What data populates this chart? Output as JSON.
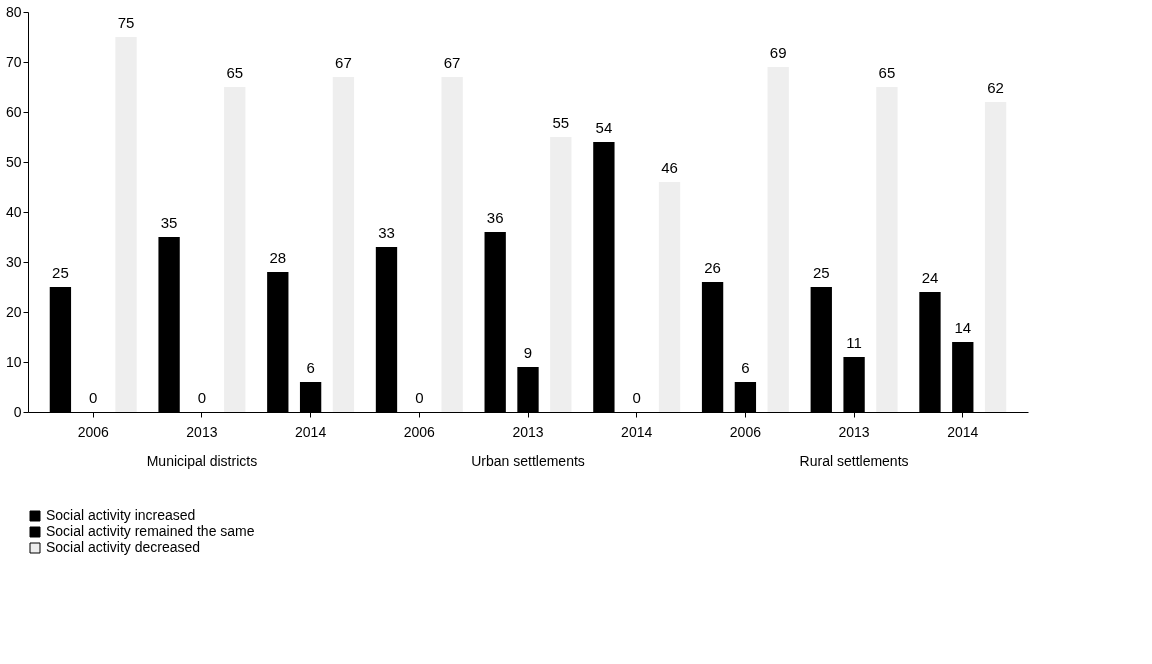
{
  "chart_data": {
    "type": "bar",
    "categories": [
      "2006",
      "2013",
      "2014",
      "2006",
      "2013",
      "2014",
      "2006",
      "2013",
      "2014"
    ],
    "series": [
      {
        "name": "Social activity increased",
        "color": "#000000",
        "values": [
          25,
          35,
          28,
          33,
          36,
          54,
          26,
          25,
          24
        ]
      },
      {
        "name": "Social activity remained the same",
        "color": "#000000",
        "values": [
          0,
          0,
          6,
          0,
          9,
          0,
          6,
          11,
          14
        ]
      },
      {
        "name": "Social activity decreased",
        "color": "#eeeeee",
        "values": [
          75,
          65,
          67,
          67,
          55,
          46,
          69,
          65,
          62
        ]
      }
    ],
    "annotations": [
      "Municipal districts",
      "Urban settlements",
      "Rural settlements"
    ],
    "ylim": [
      0,
      80
    ],
    "yticks": [
      0,
      10,
      20,
      30,
      40,
      50,
      60,
      70,
      80
    ],
    "data_labels": true,
    "grid": false,
    "legend": "bottom"
  }
}
